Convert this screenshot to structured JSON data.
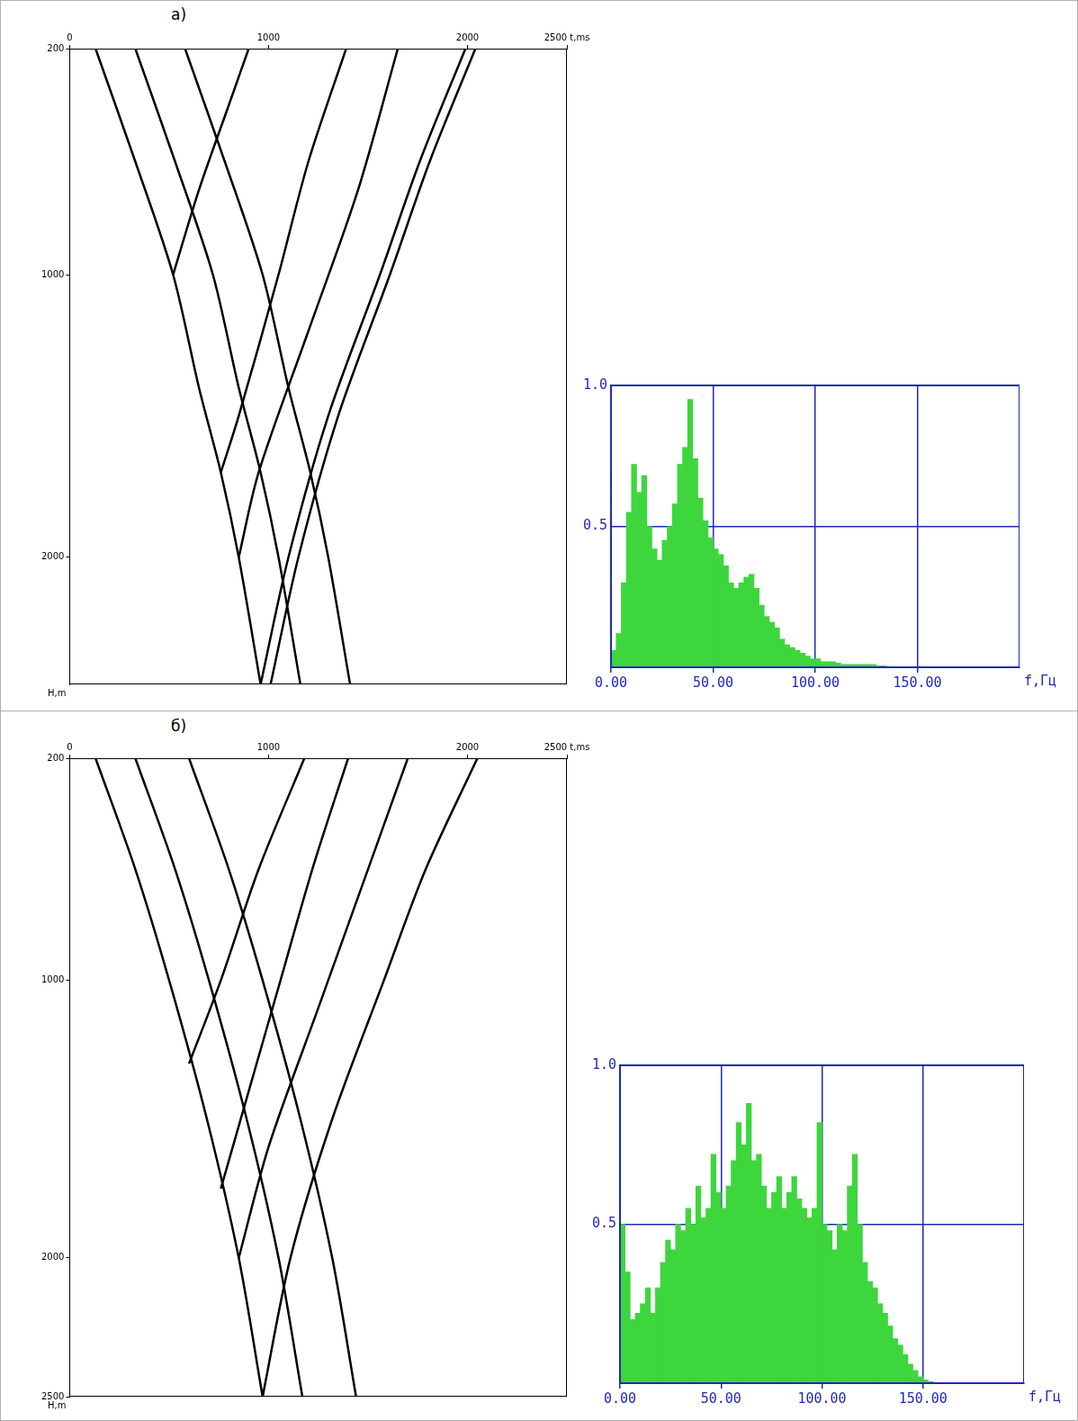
{
  "chart_data": [
    {
      "type": "line",
      "title": "а)",
      "ylabel": "H,m",
      "color": "#000000",
      "grid": false,
      "xlim": [
        0,
        2500
      ],
      "xticks": [
        0,
        1000,
        2000,
        {
          "value": 2500,
          "label": "2500 t,ms"
        }
      ],
      "ylim": [
        2450,
        200
      ],
      "yticks": [
        200,
        1000,
        2000
      ],
      "series": [
        {
          "x": [
            130,
            330,
            520,
            650,
            760,
            850,
            960
          ],
          "values": [
            200,
            600,
            1000,
            1400,
            1700,
            2000,
            2450
          ]
        },
        {
          "x": [
            330,
            530,
            720,
            850,
            960,
            1050,
            1160
          ],
          "values": [
            200,
            600,
            1000,
            1400,
            1700,
            2000,
            2450
          ]
        },
        {
          "x": [
            580,
            780,
            970,
            1100,
            1210,
            1300,
            1410
          ],
          "values": [
            200,
            600,
            1000,
            1400,
            1700,
            2000,
            2450
          ]
        },
        {
          "x": [
            520,
            650,
            800,
            900
          ],
          "values": [
            1000,
            700,
            400,
            200
          ]
        },
        {
          "x": [
            760,
            850,
            1050,
            1200,
            1390
          ],
          "values": [
            1700,
            1500,
            1000,
            600,
            200
          ]
        },
        {
          "x": [
            850,
            950,
            1200,
            1450,
            1650
          ],
          "values": [
            2000,
            1700,
            1200,
            700,
            200
          ]
        },
        {
          "x": [
            960,
            1100,
            1300,
            1560,
            1760,
            1990
          ],
          "values": [
            2450,
            2000,
            1500,
            1000,
            600,
            200
          ]
        },
        {
          "x": [
            1010,
            1150,
            1350,
            1610,
            1810,
            2040
          ],
          "values": [
            2450,
            2000,
            1500,
            1000,
            600,
            200
          ]
        }
      ]
    },
    {
      "type": "histogram",
      "xlabel": "f,Гц",
      "color": "#3dd63d",
      "grid": true,
      "xlim": [
        0,
        200
      ],
      "xticks": [
        {
          "value": 0,
          "label": "0.00"
        },
        {
          "value": 50,
          "label": "50.00"
        },
        {
          "value": 100,
          "label": "100.00"
        },
        {
          "value": 150,
          "label": "150.00"
        }
      ],
      "ylim": [
        0,
        1
      ],
      "yticks": [
        {
          "value": 0.5,
          "label": "0.5"
        },
        {
          "value": 1,
          "label": "1.0"
        }
      ],
      "bins": [
        0,
        2.5,
        5,
        7.5,
        10,
        12.5,
        15,
        17.5,
        20,
        22.5,
        25,
        27.5,
        30,
        32.5,
        35,
        37.5,
        40,
        42.5,
        45,
        47.5,
        50,
        52.5,
        55,
        57.5,
        60,
        62.5,
        65,
        67.5,
        70,
        72.5,
        75,
        77.5,
        80,
        82.5,
        85,
        87.5,
        90,
        92.5,
        95,
        97.5,
        100,
        102.5,
        105,
        107.5,
        110,
        112.5,
        115,
        117.5,
        120,
        122.5,
        125,
        127.5,
        130,
        132.5,
        135
      ],
      "values": [
        0.06,
        0.12,
        0.3,
        0.55,
        0.72,
        0.62,
        0.68,
        0.5,
        0.42,
        0.38,
        0.45,
        0.5,
        0.58,
        0.72,
        0.78,
        0.95,
        0.74,
        0.6,
        0.52,
        0.46,
        0.42,
        0.4,
        0.36,
        0.3,
        0.28,
        0.3,
        0.32,
        0.33,
        0.28,
        0.22,
        0.18,
        0.16,
        0.14,
        0.1,
        0.08,
        0.07,
        0.06,
        0.05,
        0.04,
        0.03,
        0.03,
        0.02,
        0.02,
        0.02,
        0.015,
        0.01,
        0.01,
        0.01,
        0.01,
        0.01,
        0.01,
        0.01,
        0.005,
        0.005
      ]
    },
    {
      "type": "line",
      "title": "б)",
      "ylabel": "H,m",
      "color": "#000000",
      "grid": false,
      "xlim": [
        0,
        2500
      ],
      "xticks": [
        0,
        1000,
        2000,
        {
          "value": 2500,
          "label": "2500 t,ms"
        }
      ],
      "ylim": [
        2500,
        200
      ],
      "yticks": [
        200,
        1000,
        2000,
        2500
      ],
      "series": [
        {
          "x": [
            130,
            330,
            500,
            690,
            850,
            970
          ],
          "values": [
            200,
            600,
            1000,
            1500,
            2000,
            2500
          ]
        },
        {
          "x": [
            330,
            530,
            700,
            890,
            1050,
            1170
          ],
          "values": [
            200,
            600,
            1000,
            1500,
            2000,
            2500
          ]
        },
        {
          "x": [
            600,
            800,
            970,
            1160,
            1320,
            1440
          ],
          "values": [
            200,
            600,
            1000,
            1500,
            2000,
            2500
          ]
        },
        {
          "x": [
            600,
            760,
            950,
            1180
          ],
          "values": [
            1300,
            1000,
            600,
            200
          ]
        },
        {
          "x": [
            760,
            900,
            1060,
            1220,
            1400
          ],
          "values": [
            1750,
            1400,
            1000,
            600,
            200
          ]
        },
        {
          "x": [
            850,
            1000,
            1250,
            1500,
            1700
          ],
          "values": [
            2000,
            1600,
            1100,
            600,
            200
          ]
        },
        {
          "x": [
            970,
            1110,
            1320,
            1580,
            1790,
            2050
          ],
          "values": [
            2500,
            2000,
            1500,
            1000,
            600,
            200
          ]
        }
      ]
    },
    {
      "type": "histogram",
      "xlabel": "f,Гц",
      "color": "#3dd63d",
      "grid": true,
      "xlim": [
        0,
        200
      ],
      "xticks": [
        {
          "value": 0,
          "label": "0.00"
        },
        {
          "value": 50,
          "label": "50.00"
        },
        {
          "value": 100,
          "label": "100.00"
        },
        {
          "value": 150,
          "label": "150.00"
        }
      ],
      "ylim": [
        0,
        1
      ],
      "yticks": [
        {
          "value": 0.5,
          "label": "0.5"
        },
        {
          "value": 1,
          "label": "1.0"
        }
      ],
      "bins": [
        0,
        2.5,
        5,
        7.5,
        10,
        12.5,
        15,
        17.5,
        20,
        22.5,
        25,
        27.5,
        30,
        32.5,
        35,
        37.5,
        40,
        42.5,
        45,
        47.5,
        50,
        52.5,
        55,
        57.5,
        60,
        62.5,
        65,
        67.5,
        70,
        72.5,
        75,
        77.5,
        80,
        82.5,
        85,
        87.5,
        90,
        92.5,
        95,
        97.5,
        100,
        102.5,
        105,
        107.5,
        110,
        112.5,
        115,
        117.5,
        120,
        122.5,
        125,
        127.5,
        130,
        132.5,
        135,
        137.5,
        140,
        142.5,
        145,
        147.5,
        150,
        152.5,
        155
      ],
      "values": [
        0.5,
        0.35,
        0.2,
        0.22,
        0.25,
        0.3,
        0.22,
        0.3,
        0.38,
        0.45,
        0.42,
        0.5,
        0.48,
        0.55,
        0.5,
        0.62,
        0.52,
        0.55,
        0.72,
        0.6,
        0.55,
        0.62,
        0.7,
        0.82,
        0.75,
        0.88,
        0.7,
        0.72,
        0.62,
        0.55,
        0.6,
        0.65,
        0.55,
        0.6,
        0.65,
        0.58,
        0.55,
        0.52,
        0.55,
        0.82,
        0.5,
        0.48,
        0.42,
        0.5,
        0.48,
        0.62,
        0.72,
        0.5,
        0.38,
        0.32,
        0.3,
        0.25,
        0.22,
        0.18,
        0.14,
        0.12,
        0.09,
        0.06,
        0.04,
        0.02,
        0.01,
        0.005
      ]
    }
  ]
}
